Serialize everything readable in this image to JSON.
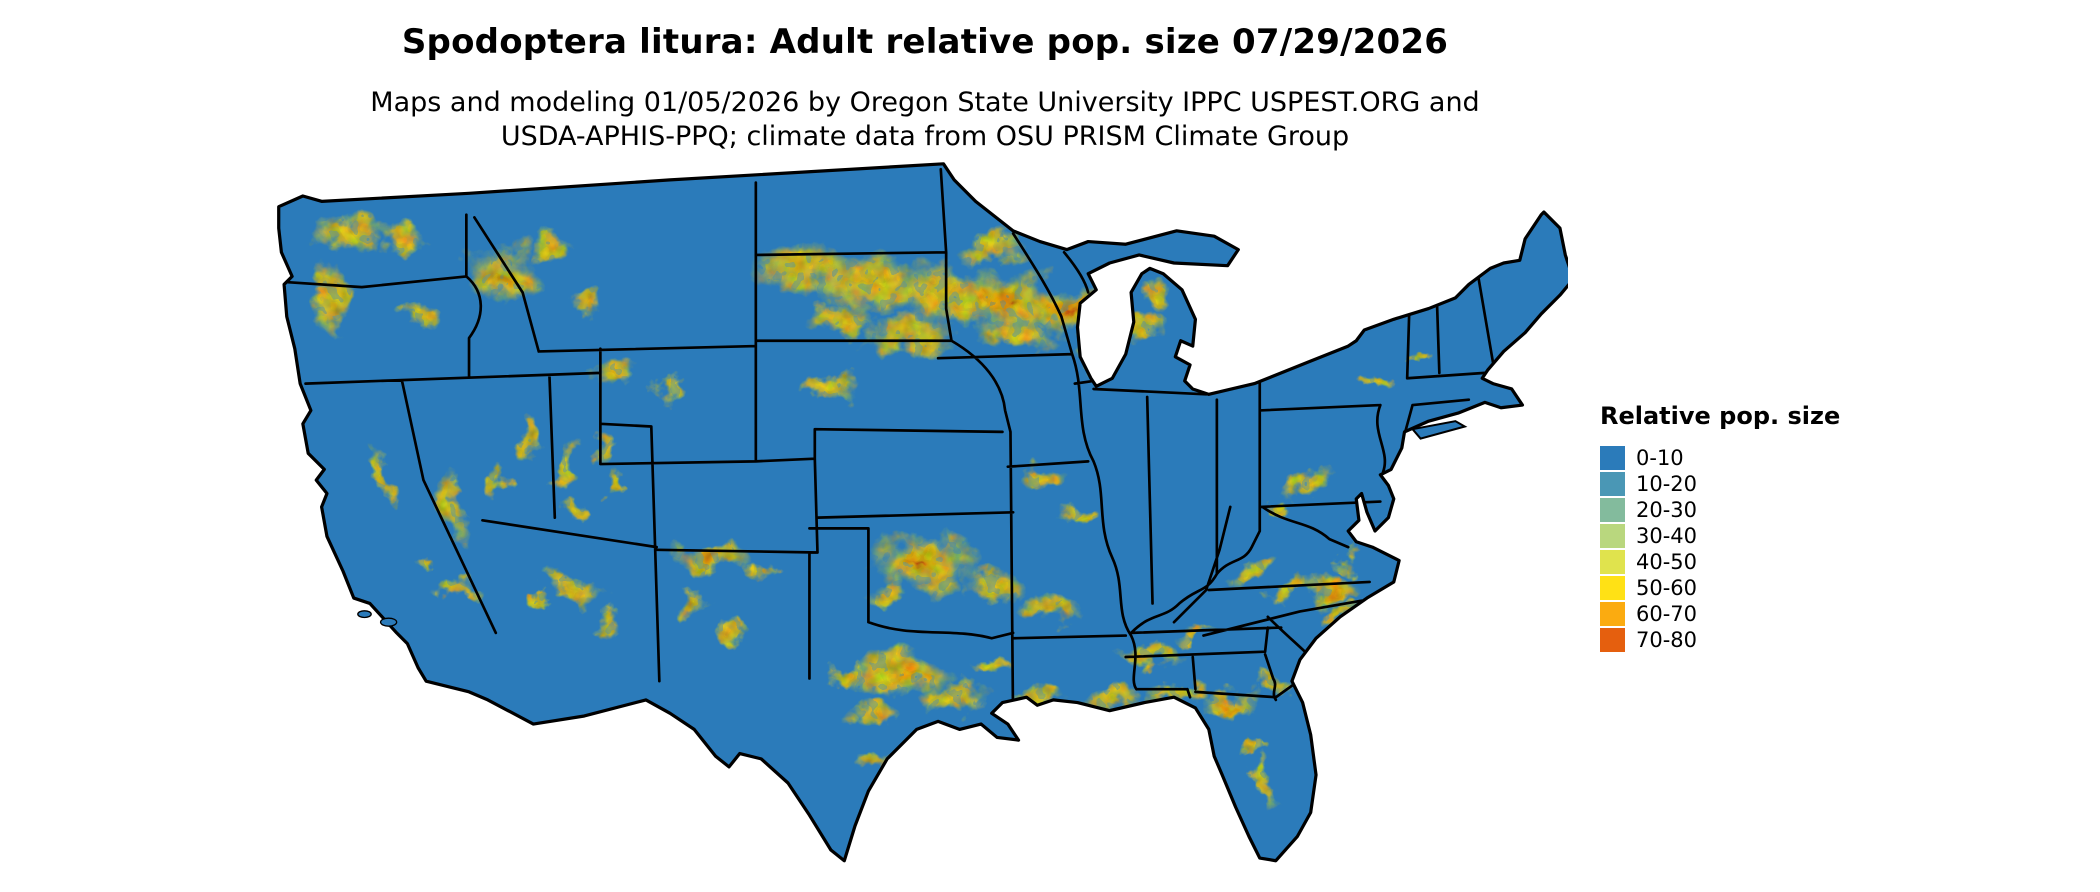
{
  "title": "Spodoptera litura: Adult relative pop. size 07/29/2026",
  "subtitle_line1": "Maps and modeling 01/05/2026 by Oregon State University IPPC USPEST.ORG and",
  "subtitle_line2": "USDA-APHIS-PPQ; climate data from OSU PRISM Climate Group",
  "legend": {
    "title": "Relative pop. size",
    "items": [
      {
        "label": "0-10",
        "color": "#2b7bba"
      },
      {
        "label": "10-20",
        "color": "#4a97b5"
      },
      {
        "label": "20-30",
        "color": "#83bb9d"
      },
      {
        "label": "30-40",
        "color": "#b9d77e"
      },
      {
        "label": "40-50",
        "color": "#e0e34d"
      },
      {
        "label": "50-60",
        "color": "#ffe115"
      },
      {
        "label": "60-70",
        "color": "#fbab10"
      },
      {
        "label": "70-80",
        "color": "#e55f0e"
      }
    ]
  },
  "map": {
    "name": "continental-us-relative-population-map",
    "base_color": "#2b7bba",
    "border_color": "#000000",
    "background_color": "#ffffff"
  }
}
